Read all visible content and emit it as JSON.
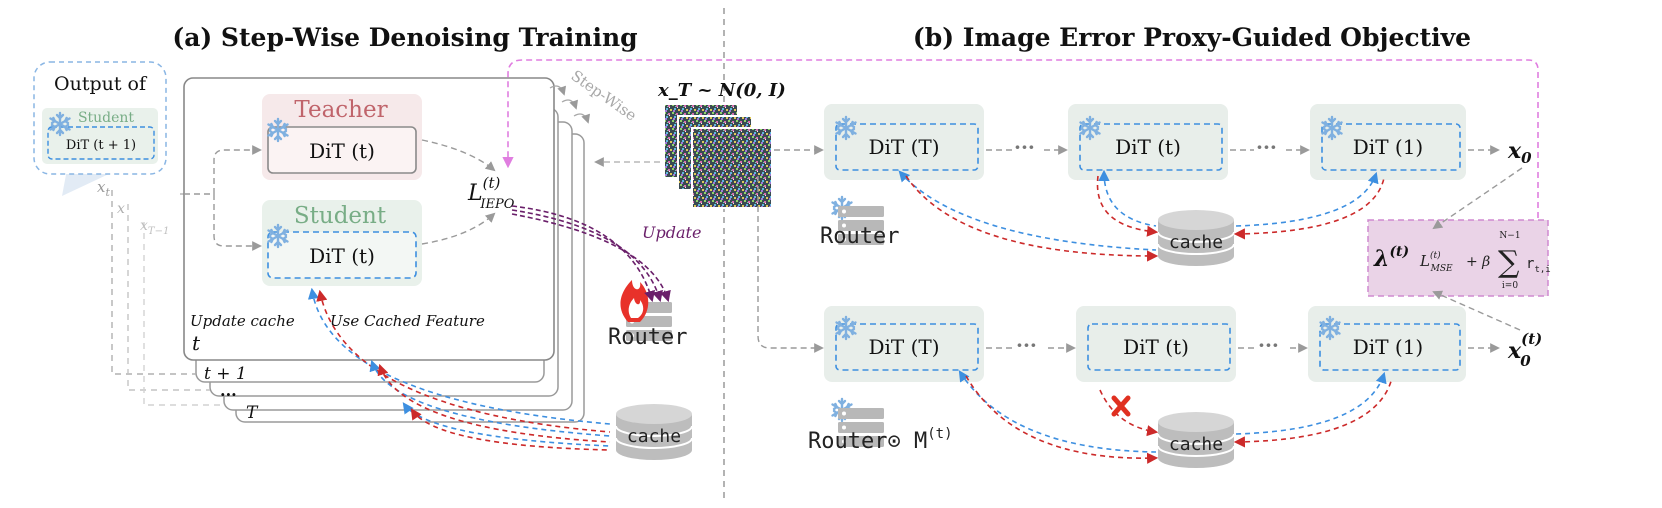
{
  "panel_a": {
    "title": "(a) Step-Wise Denoising Training",
    "output_of": "Output of",
    "student_small": "Student",
    "dit_next": "DiT (t + 1)",
    "teacher_label": "Teacher",
    "student_label": "Student",
    "dit_t": "DiT (t)",
    "loss": "L",
    "loss_sup": "(t)",
    "loss_sub": "IEPO",
    "update_cache": "Update cache",
    "use_cached": "Use Cached Feature",
    "step_t": "t",
    "step_t1": "t + 1",
    "step_dots": "...",
    "step_T": "T",
    "x_t": "x",
    "x_t_sub": "t",
    "x_dots": "x",
    "x_T1": "x",
    "x_T1_sub": "T−1",
    "step_wise": "Step-Wise",
    "update": "Update",
    "router": "Router",
    "cache": "cache"
  },
  "noise_label": "x_T ~ N(0, I)",
  "panel_b": {
    "title": "(b) Image Error Proxy-Guided Objective",
    "row1": {
      "b1": "DiT (T)",
      "b2": "DiT (t)",
      "b3": "DiT (1)",
      "out": "x",
      "out_sub": "0"
    },
    "row2": {
      "b1": "DiT (T)",
      "b2": "DiT (t)",
      "b3": "DiT (1)",
      "out": "x",
      "out_sub": "0",
      "out_sup": "(t)"
    },
    "router": "Router",
    "router_masked": "Router⊙ M",
    "router_masked_sup": "(t)",
    "cache": "cache",
    "dots": "···",
    "formula": {
      "lambda": "λ",
      "lambda_sup": "(t)",
      "mse": "L",
      "mse_sup": "(t)",
      "mse_sub": "MSE",
      "plus_beta": "+ β",
      "sum_top": "N−1",
      "sum_bot": "i=0",
      "r": "r",
      "r_sub": "t,i"
    }
  },
  "colors": {
    "blue_dash": "#3d8fe0",
    "red_dash": "#cc2a2a",
    "gray": "#9a9a9a",
    "pink": "#e07ee0",
    "purple": "#6a1f6a",
    "teacher": "#c0646b",
    "student": "#78ad86",
    "teacher_bg": "#f6e9ea",
    "student_bg": "#e9f1eb",
    "block_bg": "#e8eeea",
    "formula_bg": "#ead3e7"
  }
}
